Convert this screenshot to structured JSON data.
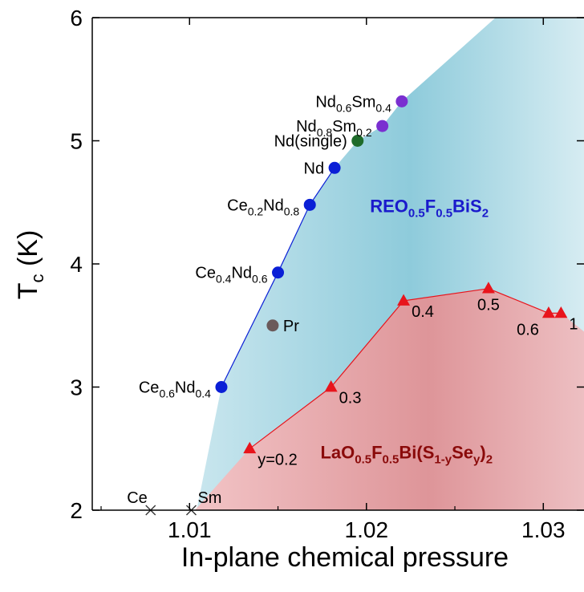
{
  "chart_data": {
    "type": "scatter",
    "xlabel": "In-plane chemical pressure",
    "ylabel": "T",
    "ylabel_sub": "c",
    "ylabel_unit": " (K)",
    "xlim": [
      1.0045,
      1.0323
    ],
    "ylim": [
      2,
      6
    ],
    "x_ticks": [
      1.01,
      1.02,
      1.03
    ],
    "y_ticks": [
      2,
      3,
      4,
      5,
      6
    ],
    "regions": [
      {
        "name_parts": [
          {
            "t": "REO",
            "s": false
          },
          {
            "t": "0.5",
            "s": true
          },
          {
            "t": "F",
            "s": false
          },
          {
            "t": "0.5",
            "s": true
          },
          {
            "t": "BiS",
            "s": false
          },
          {
            "t": "2",
            "s": true
          }
        ],
        "label_pos": [
          1.0202,
          4.42
        ],
        "color": "#1a1acc",
        "fill_color": "#8fcfdd",
        "boundary": [
          [
            1.0104,
            2.0
          ],
          [
            1.0118,
            3.0
          ],
          [
            1.015,
            3.93
          ],
          [
            1.0168,
            4.48
          ],
          [
            1.0182,
            4.78
          ],
          [
            1.0195,
            5.0
          ],
          [
            1.0209,
            5.12
          ],
          [
            1.022,
            5.32
          ],
          [
            1.0273,
            6.0
          ],
          [
            1.0323,
            6.0
          ],
          [
            1.0323,
            2.0
          ]
        ]
      },
      {
        "name_parts": [
          {
            "t": "LaO",
            "s": false
          },
          {
            "t": "0.5",
            "s": true
          },
          {
            "t": "F",
            "s": false
          },
          {
            "t": "0.5",
            "s": true
          },
          {
            "t": "Bi(S",
            "s": false
          },
          {
            "t": "1-y",
            "s": true
          },
          {
            "t": "Se",
            "s": false
          },
          {
            "t": "y",
            "s": true
          },
          {
            "t": ")",
            "s": false
          },
          {
            "t": "2",
            "s": true
          }
        ],
        "label_pos": [
          1.0174,
          2.42
        ],
        "color": "#8a0a0a",
        "fill_color": "#e8a5a8",
        "boundary": [
          [
            1.0103,
            2.0
          ],
          [
            1.0134,
            2.5
          ],
          [
            1.018,
            3.0
          ],
          [
            1.0221,
            3.7
          ],
          [
            1.0269,
            3.8
          ],
          [
            1.0303,
            3.6
          ],
          [
            1.031,
            3.6
          ],
          [
            1.0323,
            3.45
          ],
          [
            1.0323,
            2.0
          ]
        ]
      }
    ],
    "series": [
      {
        "name": "",
        "marker": "circle",
        "color": "#0a1fd6",
        "line": true,
        "points": [
          {
            "x": 1.0118,
            "y": 3.0,
            "label": [
              {
                "t": "Ce",
                "s": false
              },
              {
                "t": "0.6",
                "s": true
              },
              {
                "t": "Nd",
                "s": false
              },
              {
                "t": "0.4",
                "s": true
              }
            ],
            "anchor": "end"
          },
          {
            "x": 1.015,
            "y": 3.93,
            "label": [
              {
                "t": "Ce",
                "s": false
              },
              {
                "t": "0.4",
                "s": true
              },
              {
                "t": "Nd",
                "s": false
              },
              {
                "t": "0.6",
                "s": true
              }
            ],
            "anchor": "end"
          },
          {
            "x": 1.0168,
            "y": 4.48,
            "label": [
              {
                "t": "Ce",
                "s": false
              },
              {
                "t": "0.2",
                "s": true
              },
              {
                "t": "Nd",
                "s": false
              },
              {
                "t": "0.8",
                "s": true
              }
            ],
            "anchor": "end"
          },
          {
            "x": 1.0182,
            "y": 4.78,
            "label": [
              {
                "t": "Nd",
                "s": false
              }
            ],
            "anchor": "end"
          }
        ]
      },
      {
        "name": "",
        "marker": "circle",
        "color": "#1e6b2a",
        "line": false,
        "points": [
          {
            "x": 1.0195,
            "y": 5.0,
            "label": [
              {
                "t": "Nd(single)",
                "s": false
              }
            ],
            "anchor": "end"
          }
        ]
      },
      {
        "name": "",
        "marker": "circle",
        "color": "#7a2fd0",
        "line": false,
        "points": [
          {
            "x": 1.0209,
            "y": 5.12,
            "label": [
              {
                "t": "Nd",
                "s": false
              },
              {
                "t": "0.8",
                "s": true
              },
              {
                "t": "Sm",
                "s": false
              },
              {
                "t": "0.2",
                "s": true
              }
            ],
            "anchor": "end"
          },
          {
            "x": 1.022,
            "y": 5.32,
            "label": [
              {
                "t": "Nd",
                "s": false
              },
              {
                "t": "0.6",
                "s": true
              },
              {
                "t": "Sm",
                "s": false
              },
              {
                "t": "0.4",
                "s": true
              }
            ],
            "anchor": "end"
          }
        ]
      },
      {
        "name": "",
        "marker": "circle",
        "color": "#6b5a5a",
        "line": false,
        "points": [
          {
            "x": 1.0147,
            "y": 3.5,
            "label": [
              {
                "t": "Pr",
                "s": false
              }
            ],
            "anchor": "start"
          }
        ]
      },
      {
        "name": "",
        "marker": "triangle",
        "color": "#e8141c",
        "line": true,
        "points": [
          {
            "x": 1.0134,
            "y": 2.5,
            "label": [
              {
                "t": "y=0.2",
                "s": false
              }
            ],
            "anchor": "start"
          },
          {
            "x": 1.018,
            "y": 3.0,
            "label": [
              {
                "t": "0.3",
                "s": false
              }
            ],
            "anchor": "start"
          },
          {
            "x": 1.0221,
            "y": 3.7,
            "label": [
              {
                "t": "0.4",
                "s": false
              }
            ],
            "anchor": "start"
          },
          {
            "x": 1.0269,
            "y": 3.8,
            "label": [
              {
                "t": "0.5",
                "s": false
              }
            ],
            "anchor": "middle"
          },
          {
            "x": 1.0303,
            "y": 3.6,
            "label": [
              {
                "t": "0.6",
                "s": false
              }
            ],
            "anchor": "end"
          },
          {
            "x": 1.031,
            "y": 3.6,
            "label": [
              {
                "t": "1",
                "s": false
              }
            ],
            "anchor": "start"
          }
        ]
      },
      {
        "name": "",
        "marker": "cross",
        "color": "#333333",
        "line": false,
        "points": [
          {
            "x": 1.0078,
            "y": 2.0,
            "label": [
              {
                "t": "Ce",
                "s": false
              }
            ],
            "anchor": "end"
          },
          {
            "x": 1.0101,
            "y": 2.0,
            "label": [
              {
                "t": "Sm",
                "s": false
              }
            ],
            "anchor": "start"
          }
        ]
      }
    ]
  }
}
